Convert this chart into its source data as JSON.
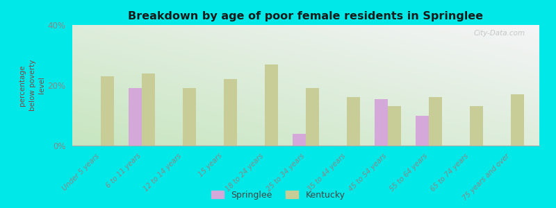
{
  "title": "Breakdown by age of poor female residents in Springlee",
  "ylabel": "percentage\nbelow poverty\nlevel",
  "categories": [
    "Under 5 years",
    "6 to 11 years",
    "12 to 14 years",
    "15 years",
    "18 to 24 years",
    "25 to 34 years",
    "35 to 44 years",
    "45 to 54 years",
    "55 to 64 years",
    "65 to 74 years",
    "75 years and over"
  ],
  "springlee_values": [
    null,
    19.0,
    null,
    null,
    null,
    4.0,
    null,
    15.5,
    10.0,
    null,
    null
  ],
  "kentucky_values": [
    23.0,
    24.0,
    19.0,
    22.0,
    27.0,
    19.0,
    16.0,
    13.0,
    16.0,
    13.0,
    17.0
  ],
  "springlee_color": "#d4a8d8",
  "kentucky_color": "#c8cc96",
  "background_color": "#00e8e8",
  "title_color": "#1a1a1a",
  "axis_label_color": "#555555",
  "tick_label_color": "#888888",
  "ytick_label_color": "#888888",
  "ylim": [
    0,
    40
  ],
  "yticks": [
    0,
    20,
    40
  ],
  "ytick_labels": [
    "0%",
    "20%",
    "40%"
  ],
  "bar_width": 0.32,
  "legend_labels": [
    "Springlee",
    "Kentucky"
  ],
  "legend_label_color": "#444444",
  "watermark": "City-Data.com"
}
